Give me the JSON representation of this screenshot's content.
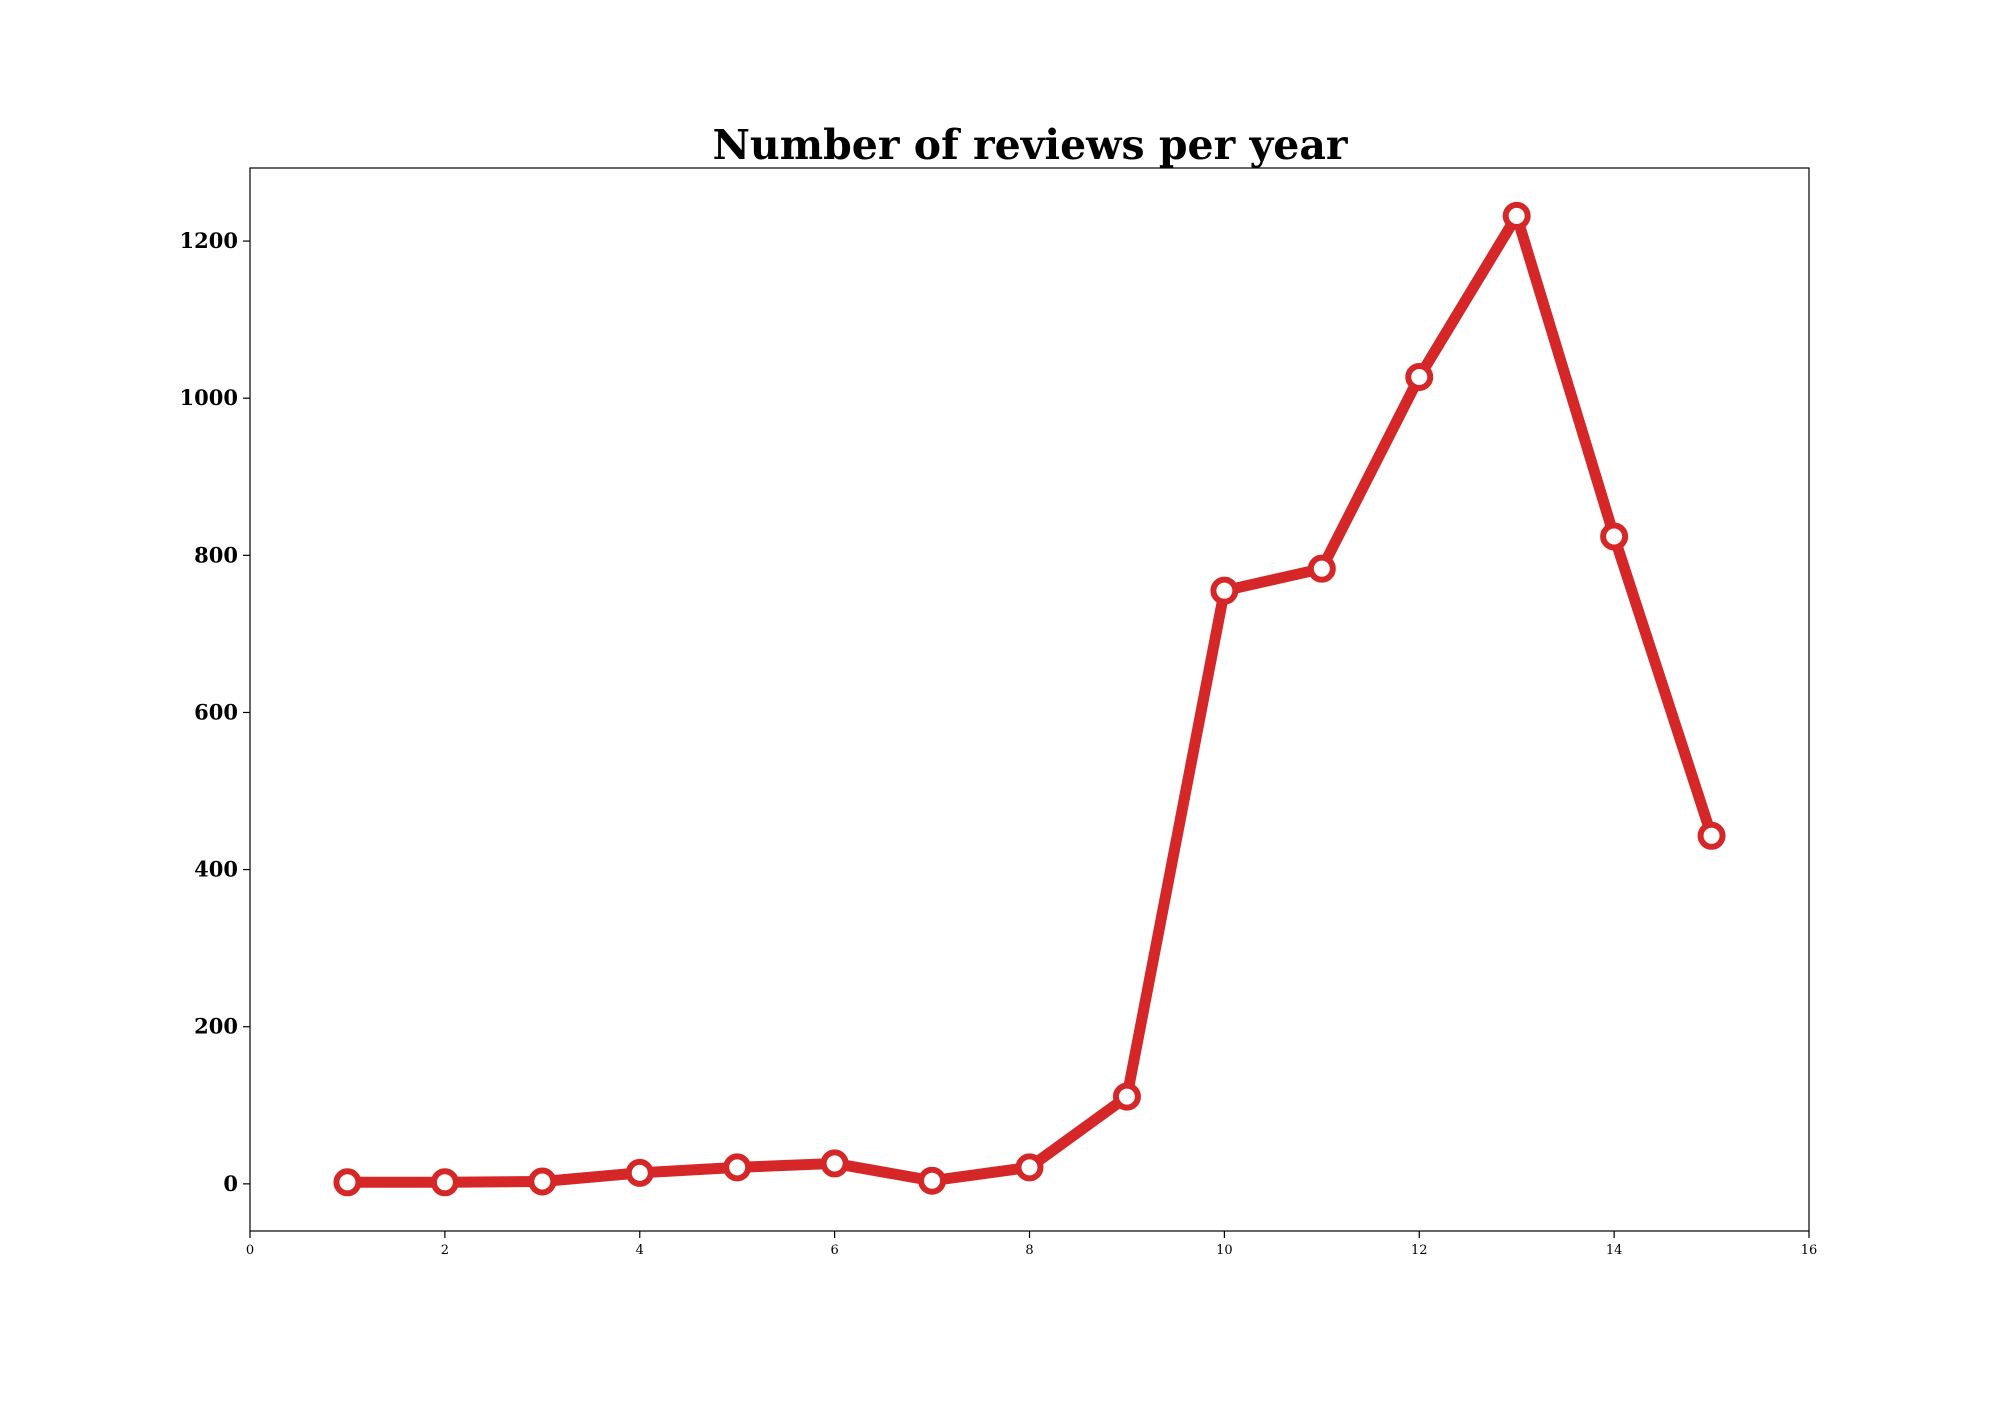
{
  "chart_data": {
    "type": "line",
    "title": "Number of reviews per year",
    "xlabel": "",
    "ylabel": "",
    "x": [
      1,
      2,
      3,
      4,
      5,
      6,
      7,
      8,
      9,
      10,
      11,
      12,
      13,
      14,
      15
    ],
    "series": [
      {
        "values": [
          2,
          2,
          3,
          14,
          21,
          26,
          4,
          21,
          111,
          755,
          783,
          1027,
          1232,
          824,
          443
        ]
      }
    ],
    "xlim": [
      0,
      16
    ],
    "ylim": [
      -60,
      1293
    ],
    "xticks": [
      0,
      2,
      4,
      6,
      8,
      10,
      12,
      14,
      16
    ],
    "yticks": [
      0,
      200,
      400,
      600,
      800,
      1000,
      1200
    ],
    "grid": false,
    "line_color": "#d62728",
    "marker_fill": "#ffffff"
  }
}
